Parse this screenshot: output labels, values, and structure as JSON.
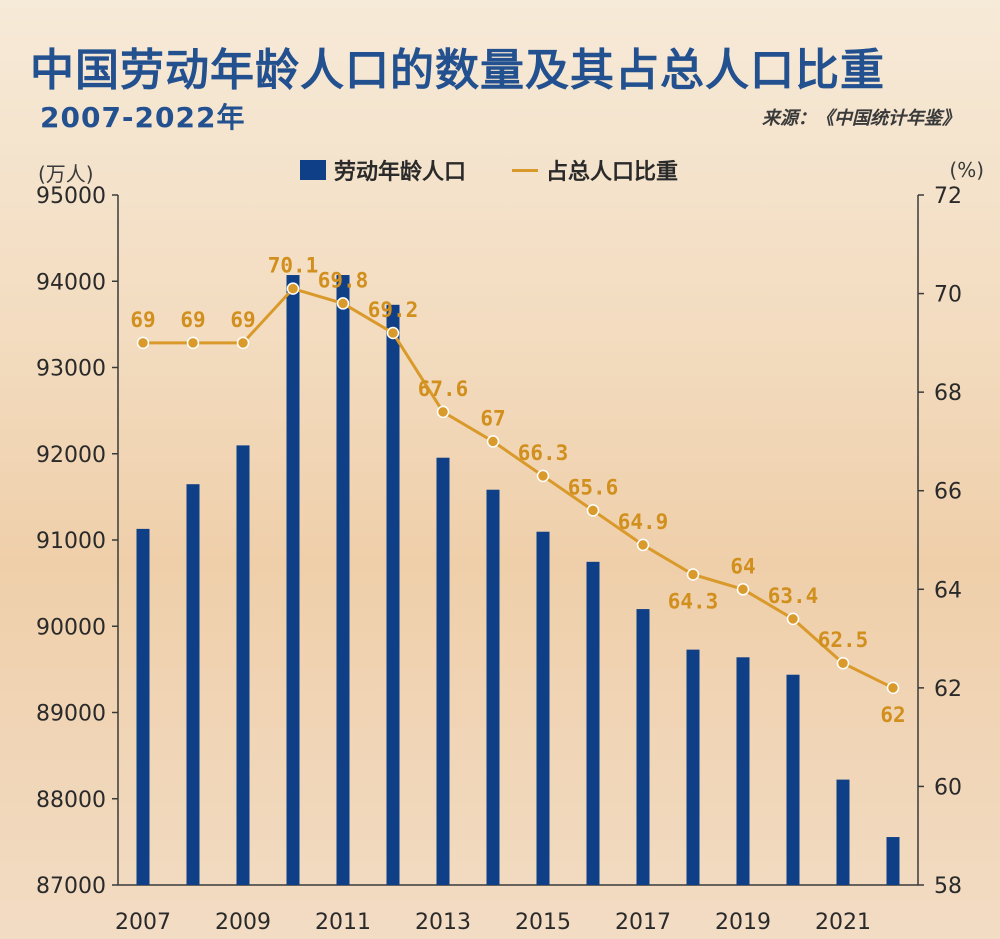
{
  "header": {
    "title": "中国劳动年龄人口的数量及其占总人口比重",
    "subtitle": "2007-2022年",
    "source": "来源：《中国统计年鉴》",
    "unit_left": "(万人)",
    "unit_right": "(%)"
  },
  "colors": {
    "bar": "#0f3f87",
    "line": "#d99a2b",
    "label": "#d18f1e"
  },
  "chart_data": {
    "type": "bar+line",
    "categories": [
      "2007",
      "2008",
      "2009",
      "2010",
      "2011",
      "2012",
      "2013",
      "2014",
      "2015",
      "2016",
      "2017",
      "2018",
      "2019",
      "2020",
      "2021",
      "2022"
    ],
    "x_tick_labels": [
      "2007",
      "2009",
      "2011",
      "2013",
      "2015",
      "2017",
      "2019",
      "2021"
    ],
    "series": [
      {
        "name": "劳动年龄人口",
        "type": "bar",
        "axis": "left",
        "values": [
          91129,
          91647,
          92097,
          94072,
          94072,
          93727,
          91954,
          91583,
          91096,
          90747,
          90199,
          89729,
          89640,
          89438,
          88222,
          87556
        ]
      },
      {
        "name": "占总人口比重",
        "type": "line",
        "axis": "right",
        "values": [
          69,
          69,
          69,
          70.1,
          69.8,
          69.2,
          67.6,
          67,
          66.3,
          65.6,
          64.9,
          64.3,
          64,
          63.4,
          62.5,
          62
        ],
        "labels": [
          "69",
          "69",
          "69",
          "70.1",
          "69.8",
          "69.2",
          "67.6",
          "67",
          "66.3",
          "65.6",
          "64.9",
          "64.3",
          "64",
          "63.4",
          "62.5",
          "62"
        ]
      }
    ],
    "y_left": {
      "min": 87000,
      "max": 95000,
      "ticks": [
        "87000",
        "88000",
        "89000",
        "90000",
        "91000",
        "92000",
        "93000",
        "94000",
        "95000"
      ]
    },
    "y_right": {
      "min": 58,
      "max": 72,
      "ticks": [
        "58",
        "60",
        "62",
        "64",
        "66",
        "68",
        "70",
        "72"
      ]
    },
    "legend_position": "top-center"
  }
}
